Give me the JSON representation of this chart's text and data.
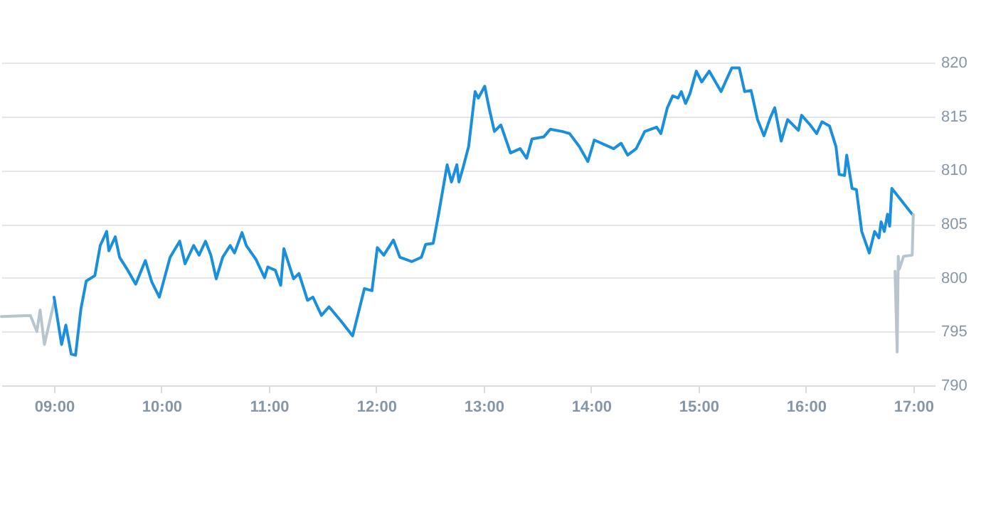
{
  "chart_data": {
    "type": "line",
    "xlim": [
      8.51,
      17.2
    ],
    "ylim": [
      790,
      820
    ],
    "xticks": [
      {
        "value": 9,
        "label": "09:00"
      },
      {
        "value": 10,
        "label": "10:00"
      },
      {
        "value": 11,
        "label": "11:00"
      },
      {
        "value": 12,
        "label": "12:00"
      },
      {
        "value": 13,
        "label": "13:00"
      },
      {
        "value": 14,
        "label": "14:00"
      },
      {
        "value": 15,
        "label": "15:00"
      },
      {
        "value": 16,
        "label": "16:00"
      },
      {
        "value": 17,
        "label": "17:00"
      }
    ],
    "yticks": [
      790,
      795,
      800,
      805,
      810,
      815,
      820
    ],
    "grid": "y",
    "marker": "none",
    "line_style": "solid",
    "series": [
      {
        "color": "#b8c5cd",
        "x": [
          8.51,
          8.78,
          8.84,
          8.87,
          8.91,
          9.0
        ],
        "values": [
          796.4,
          796.5,
          795.0,
          797.0,
          793.8,
          797.7
        ]
      },
      {
        "color": "#1a8fdc",
        "x": [
          9.0,
          9.07,
          9.11,
          9.16,
          9.2,
          9.25,
          9.3,
          9.38,
          9.43,
          9.49,
          9.51,
          9.57,
          9.61,
          9.68,
          9.76,
          9.85,
          9.91,
          9.98,
          10.08,
          10.17,
          10.22,
          10.3,
          10.35,
          10.41,
          10.46,
          10.51,
          10.57,
          10.64,
          10.68,
          10.75,
          10.79,
          10.88,
          10.96,
          10.99,
          11.06,
          11.11,
          11.14,
          11.23,
          11.28,
          11.36,
          11.41,
          11.49,
          11.56,
          11.67,
          11.74,
          11.78,
          11.83,
          11.89,
          11.96,
          12.01,
          12.07,
          12.16,
          12.22,
          12.33,
          12.42,
          12.46,
          12.53,
          12.58,
          12.66,
          12.7,
          12.75,
          12.77,
          12.81,
          12.86,
          12.92,
          12.95,
          13.01,
          13.05,
          13.1,
          13.16,
          13.25,
          13.34,
          13.4,
          13.45,
          13.56,
          13.62,
          13.73,
          13.8,
          13.89,
          13.97,
          14.03,
          14.21,
          14.28,
          14.34,
          14.42,
          14.5,
          14.61,
          14.65,
          14.71,
          14.76,
          14.81,
          14.84,
          14.88,
          14.92,
          14.98,
          15.03,
          15.1,
          15.21,
          15.31,
          15.38,
          15.43,
          15.49,
          15.55,
          15.61,
          15.67,
          15.71,
          15.77,
          15.83,
          15.93,
          15.96,
          16.04,
          16.1,
          16.15,
          16.22,
          16.28,
          16.31,
          16.36,
          16.38,
          16.43,
          16.47,
          16.52,
          16.59,
          16.64,
          16.68,
          16.7,
          16.73,
          16.76,
          16.78,
          16.8,
          16.99
        ],
        "values": [
          798.2,
          793.8,
          795.6,
          792.9,
          792.8,
          797.1,
          799.7,
          800.2,
          803.0,
          804.3,
          802.5,
          803.8,
          801.9,
          800.8,
          799.4,
          801.6,
          799.6,
          798.2,
          801.9,
          803.4,
          801.3,
          803.0,
          802.1,
          803.4,
          802.1,
          799.9,
          801.9,
          803.0,
          802.3,
          804.2,
          803.0,
          801.7,
          800.0,
          801.0,
          800.7,
          799.3,
          802.7,
          799.9,
          800.4,
          797.9,
          798.2,
          796.5,
          797.3,
          796.0,
          795.1,
          794.6,
          796.6,
          799.0,
          798.8,
          802.8,
          802.1,
          803.5,
          801.9,
          801.5,
          801.9,
          803.1,
          803.2,
          805.9,
          810.5,
          808.9,
          810.5,
          808.9,
          810.3,
          812.2,
          817.3,
          816.7,
          817.8,
          815.8,
          813.6,
          814.2,
          811.6,
          812.0,
          811.1,
          812.9,
          813.1,
          813.8,
          813.6,
          813.4,
          812.2,
          810.8,
          812.8,
          812.0,
          812.5,
          811.4,
          812.0,
          813.6,
          814.0,
          813.4,
          815.8,
          816.9,
          816.7,
          817.3,
          816.2,
          817.1,
          819.2,
          818.2,
          819.2,
          817.3,
          819.5,
          819.5,
          817.3,
          817.4,
          814.7,
          813.2,
          814.9,
          815.8,
          812.7,
          814.7,
          813.7,
          815.1,
          814.2,
          813.4,
          814.5,
          814.1,
          812.2,
          809.6,
          809.5,
          811.4,
          808.3,
          808.2,
          804.3,
          802.3,
          804.3,
          803.7,
          805.2,
          804.3,
          805.9,
          804.8,
          808.3,
          805.9
        ]
      },
      {
        "color": "#b8c5cd",
        "x": [
          16.83,
          16.85,
          16.86,
          16.87,
          16.91,
          16.99,
          17.0
        ],
        "values": [
          800.6,
          793.1,
          802.0,
          800.8,
          802.0,
          802.1,
          805.9
        ]
      }
    ]
  }
}
